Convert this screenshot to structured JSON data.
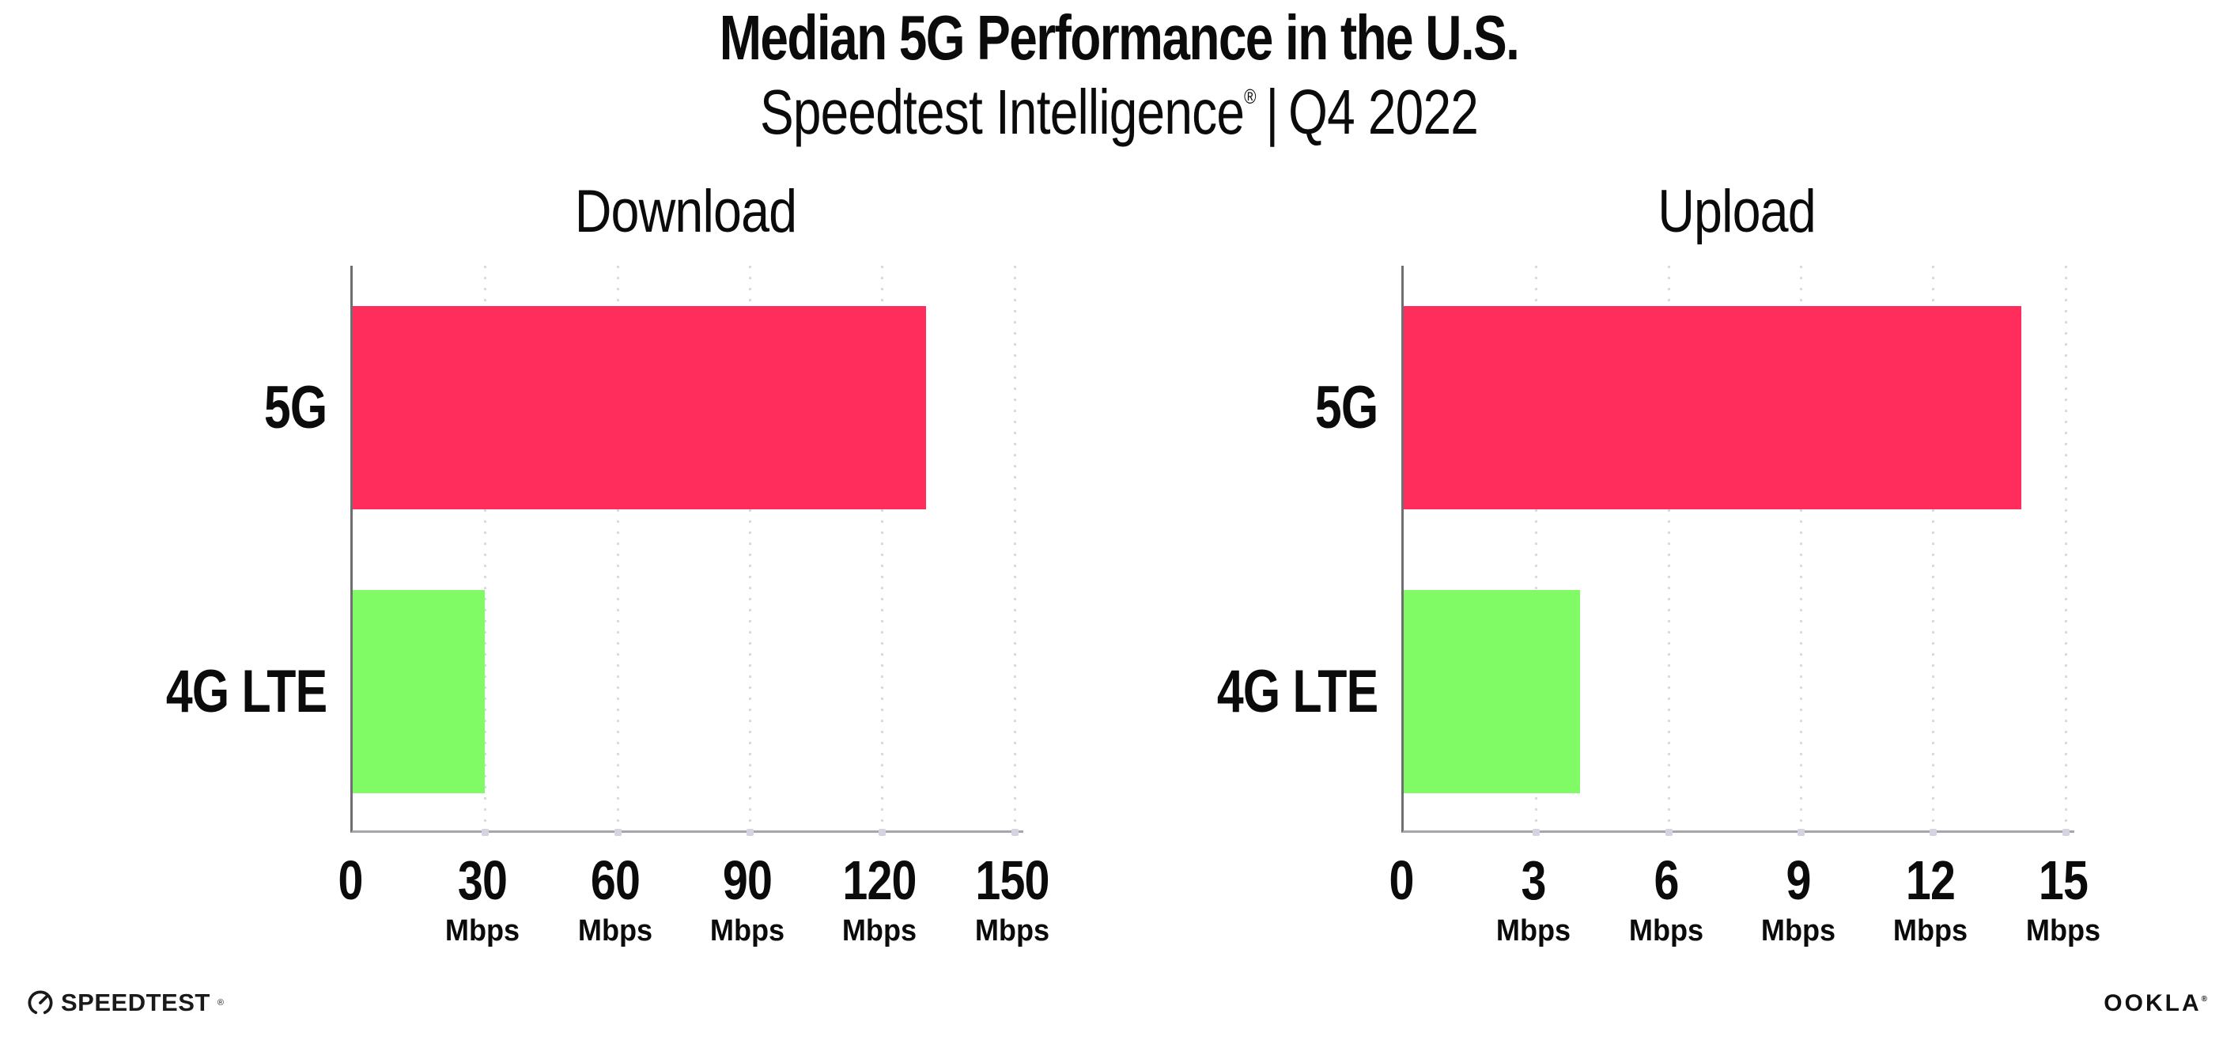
{
  "title": "Median 5G Performance in the U.S.",
  "subtitle": {
    "brand": "Speedtest Intelligence",
    "trademark": "®",
    "separator": "|",
    "period": "Q4 2022"
  },
  "footer": {
    "speedtest_text": "SPEEDTEST",
    "speedtest_mark": "®",
    "ookla_text": "OOKLA",
    "ookla_mark": "®"
  },
  "colors": {
    "bar_5g": "#FF2D5B",
    "bar_4g_lte": "#80FB65",
    "gridline": "#DADAE6",
    "axis_left": "#6F6F73",
    "axis_bottom": "#A6A6AD",
    "text": "#0B0B0B"
  },
  "chart_data": [
    {
      "type": "bar",
      "orientation": "horizontal",
      "title": "Download",
      "categories": [
        "5G",
        "4G LTE"
      ],
      "values": [
        130,
        30
      ],
      "unit": "Mbps",
      "xlim": [
        0,
        152
      ],
      "xticks": [
        0,
        30,
        60,
        90,
        120,
        150
      ],
      "bar_colors": [
        "#FF2D5B",
        "#80FB65"
      ],
      "grid": "dotted-vertical",
      "legend": "none"
    },
    {
      "type": "bar",
      "orientation": "horizontal",
      "title": "Upload",
      "categories": [
        "5G",
        "4G LTE"
      ],
      "values": [
        14,
        4
      ],
      "unit": "Mbps",
      "xlim": [
        0,
        15.2
      ],
      "xticks": [
        0,
        3,
        6,
        9,
        12,
        15
      ],
      "bar_colors": [
        "#FF2D5B",
        "#80FB65"
      ],
      "grid": "dotted-vertical",
      "legend": "none"
    }
  ]
}
